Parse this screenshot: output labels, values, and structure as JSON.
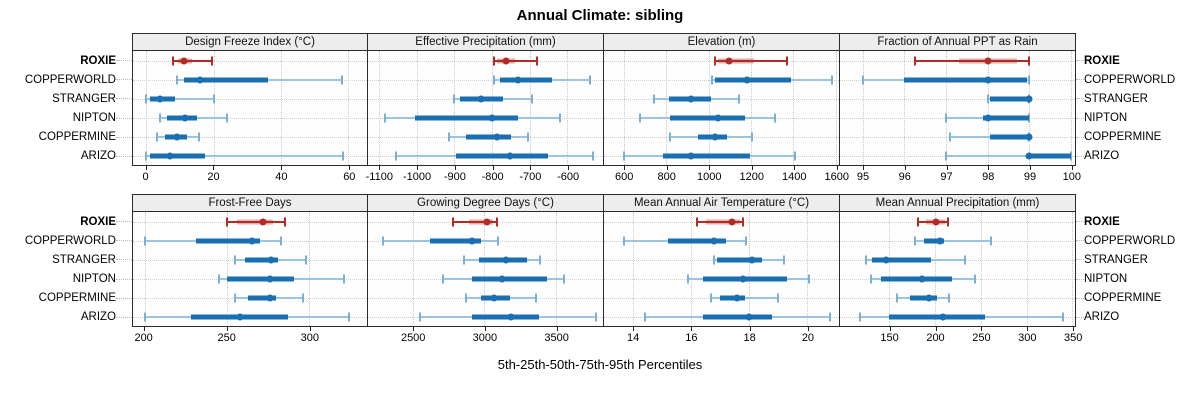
{
  "colors": {
    "highlight": "#B02C24",
    "highlight_band": "rgba(176,44,36,0.38)",
    "normal": "#1A6FB0",
    "normal_whisker": "#9CC4E0",
    "normal_cap": "#7DAFD2",
    "strip_bg": "#EDEDED",
    "grid": "#C9C9C9",
    "border": "#2B2B2B"
  },
  "chart_data": {
    "type": "dotplot_percentiles",
    "title": "Annual Climate: sibling",
    "xlabel": "5th-25th-50th-75th-95th Percentiles",
    "percentiles": [
      5,
      25,
      50,
      75,
      95
    ],
    "sites": [
      "ROXIE",
      "COPPERWORLD",
      "STRANGER",
      "NIPTON",
      "COPPERMINE",
      "ARIZO"
    ],
    "highlight_site": "ROXIE",
    "legend_position": "none",
    "grid": "dotted",
    "panels": [
      {
        "title": "Design Freeze Index (°C)",
        "row": 0,
        "xlim": [
          -4,
          65.5
        ],
        "ticks": [
          0,
          20,
          40,
          60
        ],
        "values": [
          [
            8,
            9.5,
            11,
            13.5,
            19.5
          ],
          [
            9,
            11,
            16,
            36,
            58
          ],
          [
            0,
            1,
            4,
            8.5,
            20
          ],
          [
            4,
            6,
            11.5,
            15,
            24
          ],
          [
            3,
            5.5,
            9,
            12,
            15.5
          ],
          [
            0,
            1,
            7,
            17.5,
            58.5
          ]
        ]
      },
      {
        "title": "Effective Precipitation (mm)",
        "row": 0,
        "xlim": [
          -1130,
          -505
        ],
        "ticks": [
          -1100,
          -1000,
          -900,
          -800,
          -700,
          -600
        ],
        "values": [
          [
            -795,
            -788,
            -764,
            -740,
            -680
          ],
          [
            -795,
            -780,
            -732,
            -640,
            -540
          ],
          [
            -902,
            -885,
            -830,
            -770,
            -693
          ],
          [
            -1085,
            -1005,
            -800,
            -730,
            -620
          ],
          [
            -915,
            -870,
            -788,
            -750,
            -705
          ],
          [
            -1055,
            -895,
            -753,
            -650,
            -532
          ]
        ]
      },
      {
        "title": "Elevation (m)",
        "row": 0,
        "xlim": [
          505,
          1615
        ],
        "ticks": [
          600,
          800,
          1000,
          1200,
          1400,
          1600
        ],
        "values": [
          [
            1030,
            1045,
            1095,
            1215,
            1370
          ],
          [
            1015,
            1030,
            1180,
            1390,
            1580
          ],
          [
            740,
            813,
            918,
            1012,
            1144
          ],
          [
            675,
            815,
            1045,
            1170,
            1315
          ],
          [
            815,
            950,
            1030,
            1085,
            1205
          ],
          [
            600,
            785,
            915,
            1195,
            1405
          ]
        ]
      },
      {
        "title": "Fraction of Annual PPT as Rain",
        "row": 0,
        "xlim": [
          94.45,
          100.1
        ],
        "ticks": [
          95,
          96,
          97,
          98,
          99,
          100
        ],
        "values": [
          [
            96.25,
            97.3,
            98,
            98.7,
            99
          ],
          [
            95,
            96,
            98,
            98.95,
            99
          ],
          [
            98,
            98.05,
            99,
            99,
            99
          ],
          [
            97,
            97.9,
            98,
            99,
            99
          ],
          [
            97.1,
            98.05,
            99,
            99,
            99
          ],
          [
            97,
            98.95,
            99,
            100,
            100
          ]
        ]
      },
      {
        "title": "Frost-Free Days",
        "row": 1,
        "xlim": [
          193,
          335
        ],
        "ticks": [
          200,
          250,
          300
        ],
        "values": [
          [
            250,
            256,
            272,
            278,
            285
          ],
          [
            200,
            231,
            265,
            270,
            283
          ],
          [
            255,
            261,
            277,
            281,
            298
          ],
          [
            245,
            250,
            276,
            291,
            321
          ],
          [
            255,
            263,
            276,
            280,
            296
          ],
          [
            200,
            228,
            258,
            287,
            324
          ]
        ]
      },
      {
        "title": "Growing Degree Days (°C)",
        "row": 1,
        "xlim": [
          2185,
          3830
        ],
        "ticks": [
          2500,
          3000,
          3500
        ],
        "values": [
          [
            2780,
            2890,
            3015,
            3060,
            3085
          ],
          [
            2290,
            2620,
            2910,
            2975,
            3095
          ],
          [
            2855,
            2965,
            3150,
            3295,
            3390
          ],
          [
            2710,
            2915,
            3125,
            3435,
            3560
          ],
          [
            2870,
            2975,
            3070,
            3180,
            3360
          ],
          [
            2550,
            2915,
            3185,
            3380,
            3780
          ]
        ]
      },
      {
        "title": "Mean Annual Air Temperature (°C)",
        "row": 1,
        "xlim": [
          13,
          21.1
        ],
        "ticks": [
          14,
          16,
          18,
          20
        ],
        "values": [
          [
            16.2,
            16.5,
            17.4,
            17.7,
            17.8
          ],
          [
            13.7,
            15.2,
            16.8,
            17.2,
            17.9
          ],
          [
            16.8,
            16.9,
            18.1,
            18.45,
            19.2
          ],
          [
            15.9,
            16.4,
            17.8,
            19.3,
            20.05
          ],
          [
            16.7,
            17,
            17.6,
            17.85,
            19
          ],
          [
            14.4,
            16.4,
            18,
            18.8,
            20.8
          ]
        ]
      },
      {
        "title": "Mean Annual Precipitation (mm)",
        "row": 1,
        "xlim": [
          96,
          353
        ],
        "ticks": [
          150,
          200,
          250,
          300,
          350
        ],
        "values": [
          [
            181,
            190,
            201,
            211,
            214
          ],
          [
            178,
            188,
            205,
            210,
            261
          ],
          [
            124,
            131,
            146,
            195,
            233
          ],
          [
            130,
            141,
            186,
            218,
            244
          ],
          [
            158,
            173,
            193,
            202,
            215
          ],
          [
            118,
            150,
            209,
            255,
            340
          ]
        ]
      }
    ]
  }
}
